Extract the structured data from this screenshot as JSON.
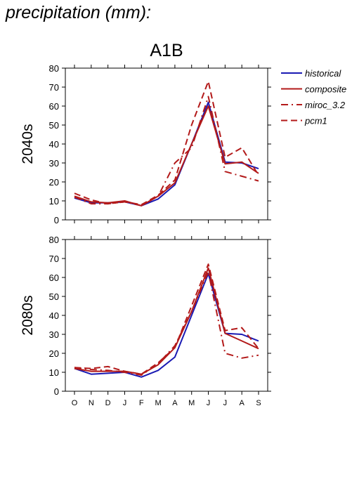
{
  "page": {
    "title": "precipitation (mm):"
  },
  "chart_data": {
    "type": "line",
    "scenario": "A1B",
    "categories": [
      "O",
      "N",
      "D",
      "J",
      "F",
      "M",
      "A",
      "M",
      "J",
      "J",
      "A",
      "S"
    ],
    "ylim": [
      0,
      80
    ],
    "yticks": [
      0,
      10,
      20,
      30,
      40,
      50,
      60,
      70,
      80
    ],
    "legend_position": "right",
    "legend": [
      {
        "name": "historical",
        "color": "#1a1ab3",
        "dash": "solid"
      },
      {
        "name": "composite",
        "color": "#b31a1a",
        "dash": "solid"
      },
      {
        "name": "miroc_3.2",
        "color": "#b31a1a",
        "dash": "dashdot"
      },
      {
        "name": "pcm1",
        "color": "#b31a1a",
        "dash": "dashed"
      }
    ],
    "panels": [
      {
        "label": "2040s",
        "series": [
          {
            "name": "historical",
            "values": [
              11.5,
              9,
              9,
              9.5,
              7.5,
              11,
              18.5,
              40,
              62,
              30.5,
              30,
              27
            ]
          },
          {
            "name": "composite",
            "values": [
              12.5,
              9.5,
              9,
              10,
              7.5,
              12.5,
              19.5,
              40,
              60,
              29.5,
              30.5,
              24.5
            ]
          },
          {
            "name": "miroc_3.2",
            "values": [
              12,
              8.5,
              8.5,
              9.5,
              7.5,
              12.5,
              30,
              38,
              65,
              25.5,
              23,
              20.5
            ]
          },
          {
            "name": "pcm1",
            "values": [
              14,
              10.5,
              8.5,
              9.5,
              8,
              13,
              21,
              50,
              73,
              33,
              38,
              23.5
            ]
          }
        ]
      },
      {
        "label": "2080s",
        "series": [
          {
            "name": "historical",
            "values": [
              12,
              9,
              9.5,
              10,
              7.5,
              11,
              18,
              40,
              62,
              30.5,
              30,
              26.5
            ]
          },
          {
            "name": "composite",
            "values": [
              12,
              10.5,
              10.5,
              10.5,
              9,
              14,
              23,
              42,
              65,
              30.5,
              26.5,
              22.5
            ]
          },
          {
            "name": "miroc_3.2",
            "values": [
              12.5,
              11.5,
              11,
              10,
              8.5,
              14.5,
              24,
              42,
              63,
              20,
              17.5,
              19
            ]
          },
          {
            "name": "pcm1",
            "values": [
              12.5,
              12,
              13,
              10.5,
              9,
              15,
              23,
              45,
              67,
              32,
              33.5,
              22.5
            ]
          }
        ]
      }
    ]
  }
}
